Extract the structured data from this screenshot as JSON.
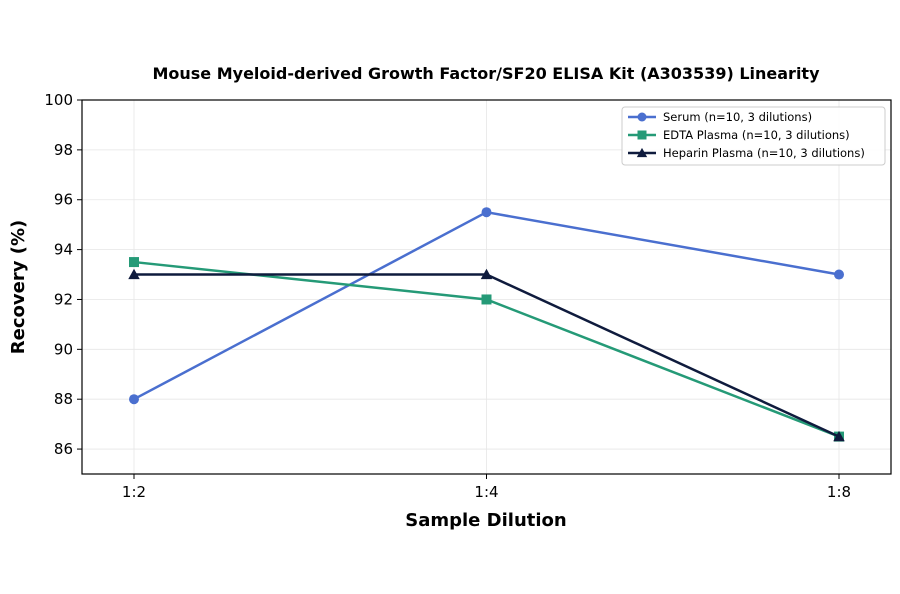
{
  "chart_data": {
    "type": "line",
    "title": "Mouse Myeloid-derived Growth Factor/SF20 ELISA Kit (A303539) Linearity",
    "xlabel": "Sample Dilution",
    "ylabel": "Recovery (%)",
    "categories": [
      "1:2",
      "1:4",
      "1:8"
    ],
    "ylim": [
      85,
      100
    ],
    "yticks": [
      86,
      88,
      90,
      92,
      94,
      96,
      98,
      100
    ],
    "grid": true,
    "legend_position": "top-right",
    "series": [
      {
        "name": "Serum (n=10, 3 dilutions)",
        "values": [
          88,
          95.5,
          93
        ],
        "color": "#4a6fcf",
        "marker": "circle"
      },
      {
        "name": "EDTA Plasma (n=10, 3 dilutions)",
        "values": [
          93.5,
          92,
          86.5
        ],
        "color": "#259a77",
        "marker": "square"
      },
      {
        "name": "Heparin Plasma (n=10, 3 dilutions)",
        "values": [
          93,
          93,
          86.5
        ],
        "color": "#0f1b3d",
        "marker": "triangle"
      }
    ]
  }
}
